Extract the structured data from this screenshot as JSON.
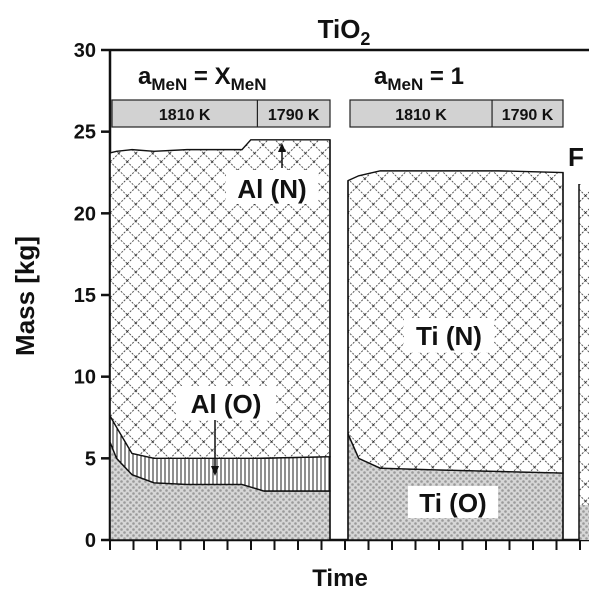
{
  "chart_data": {
    "type": "area",
    "title": "TiO",
    "title_subscript": "2",
    "xlabel": "Time",
    "ylabel": "Mass [kg]",
    "ylim": [
      0,
      30
    ],
    "yticks": [
      0,
      5,
      10,
      15,
      20,
      25,
      30
    ],
    "grid": false,
    "panels": [
      {
        "heading": {
          "base": "a",
          "sub": "MeN",
          "mid": " = X",
          "sub2": "MeN"
        },
        "temperature_bar": [
          "1810 K",
          "1790 K"
        ],
        "series": [
          {
            "name": "Al (O)",
            "x": [
              0,
              0.03,
              0.1,
              0.2,
              0.35,
              0.6,
              0.7,
              1
            ],
            "values": [
              6.0,
              5.0,
              4.0,
              3.5,
              3.4,
              3.4,
              3.0,
              3.0
            ]
          },
          {
            "name": "Al (N)",
            "x": [
              0,
              0.03,
              0.1,
              0.2,
              0.35,
              0.6,
              0.7,
              1
            ],
            "values": [
              1.6,
              1.9,
              1.3,
              1.5,
              1.6,
              1.6,
              2.0,
              2.1
            ]
          },
          {
            "name": "",
            "x": [
              0,
              0.03,
              0.1,
              0.2,
              0.35,
              0.6,
              0.64,
              1
            ],
            "values": [
              16.1,
              16.9,
              18.6,
              18.8,
              18.9,
              18.9,
              19.5,
              19.4
            ]
          }
        ],
        "annotations": [
          "Al (N)",
          "Al (O)"
        ]
      },
      {
        "heading": {
          "base": "a",
          "sub": "MeN",
          "mid": " = 1",
          "sub2": ""
        },
        "temperature_bar": [
          "1810 K",
          "1790 K"
        ],
        "series": [
          {
            "name": "Ti (O)",
            "x": [
              0,
              0.05,
              0.15,
              0.4,
              0.7,
              1
            ],
            "values": [
              6.5,
              5.0,
              4.4,
              4.3,
              4.2,
              4.1
            ]
          },
          {
            "name": "Ti (N)",
            "x": [
              0,
              0.05,
              0.15,
              0.4,
              0.7,
              1
            ],
            "values": [
              15.5,
              17.3,
              18.2,
              18.3,
              18.4,
              18.4
            ]
          }
        ],
        "annotations": [
          "Ti (N)",
          "Ti (O)"
        ]
      }
    ],
    "cut_panel_label": "F"
  }
}
